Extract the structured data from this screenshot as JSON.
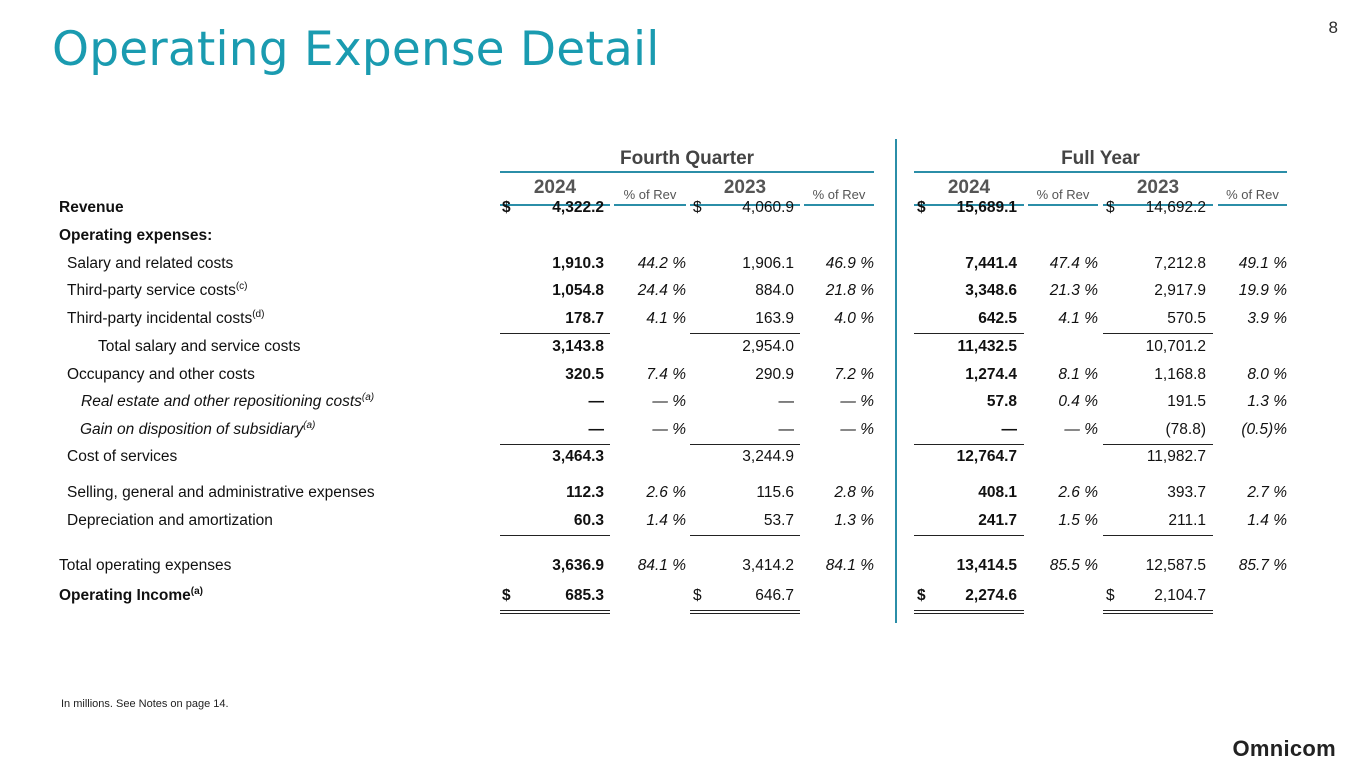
{
  "page": {
    "title": "Operating Expense Detail",
    "number": "8",
    "footnote": "In millions. See Notes on page 14.",
    "logo": "Omnicom"
  },
  "colors": {
    "accent": "#1a9bb0",
    "rule": "#2b8ea8"
  },
  "table": {
    "groups": [
      "Fourth Quarter",
      "Full Year"
    ],
    "years": [
      "2024",
      "2023",
      "2024",
      "2023"
    ],
    "pct_label": "% of Rev",
    "rows": [
      {
        "label": "Revenue",
        "style": "bold",
        "cur": [
          "$",
          "$",
          "$",
          "$"
        ],
        "v": [
          "4,322.2",
          "4,060.9",
          "15,689.1",
          "14,692.2"
        ],
        "p": [
          "",
          "",
          "",
          ""
        ]
      },
      {
        "label": "Operating expenses:",
        "style": "bold",
        "cur": [
          "",
          "",
          "",
          ""
        ],
        "v": [
          "",
          "",
          "",
          ""
        ],
        "p": [
          "",
          "",
          "",
          ""
        ]
      },
      {
        "label": "Salary and related costs",
        "style": "",
        "cur": [
          "",
          "",
          "",
          ""
        ],
        "v": [
          "1,910.3",
          "1,906.1",
          "7,441.4",
          "7,212.8"
        ],
        "p": [
          "44.2 %",
          "46.9 %",
          "47.4 %",
          "49.1 %"
        ]
      },
      {
        "label": "Third-party service costs",
        "sup": "(c)",
        "style": "",
        "cur": [
          "",
          "",
          "",
          ""
        ],
        "v": [
          "1,054.8",
          "884.0",
          "3,348.6",
          "2,917.9"
        ],
        "p": [
          "24.4 %",
          "21.8 %",
          "21.3 %",
          "19.9 %"
        ]
      },
      {
        "label": "Third-party incidental costs",
        "sup": "(d)",
        "style": "",
        "cur": [
          "",
          "",
          "",
          ""
        ],
        "v": [
          "178.7",
          "163.9",
          "642.5",
          "570.5"
        ],
        "p": [
          "4.1 %",
          "4.0 %",
          "4.1 %",
          "3.9 %"
        ]
      },
      {
        "label": "Total salary and service costs",
        "style": "",
        "cur": [
          "",
          "",
          "",
          ""
        ],
        "v": [
          "3,143.8",
          "2,954.0",
          "11,432.5",
          "10,701.2"
        ],
        "p": [
          "",
          "",
          "",
          ""
        ]
      },
      {
        "label": "Occupancy and other costs",
        "style": "",
        "cur": [
          "",
          "",
          "",
          ""
        ],
        "v": [
          "320.5",
          "290.9",
          "1,274.4",
          "1,168.8"
        ],
        "p": [
          "7.4 %",
          "7.2 %",
          "8.1 %",
          "8.0 %"
        ]
      },
      {
        "label": "Real estate and other repositioning costs",
        "sup": "(a)",
        "style": "italic",
        "cur": [
          "",
          "",
          "",
          ""
        ],
        "v": [
          "—",
          "—",
          "57.8",
          "191.5"
        ],
        "p": [
          "— %",
          "— %",
          "0.4 %",
          "1.3 %"
        ]
      },
      {
        "label": "Gain on disposition of subsidiary",
        "sup": "(a)",
        "style": "italic",
        "cur": [
          "",
          "",
          "",
          ""
        ],
        "v": [
          "—",
          "—",
          "—",
          "(78.8)"
        ],
        "p": [
          "— %",
          "— %",
          "— %",
          "(0.5)%"
        ]
      },
      {
        "label": "Cost of services",
        "style": "",
        "cur": [
          "",
          "",
          "",
          ""
        ],
        "v": [
          "3,464.3",
          "3,244.9",
          "12,764.7",
          "11,982.7"
        ],
        "p": [
          "",
          "",
          "",
          ""
        ]
      },
      {
        "label": "Selling, general and administrative expenses",
        "style": "",
        "cur": [
          "",
          "",
          "",
          ""
        ],
        "v": [
          "112.3",
          "115.6",
          "408.1",
          "393.7"
        ],
        "p": [
          "2.6 %",
          "2.8 %",
          "2.6 %",
          "2.7 %"
        ]
      },
      {
        "label": "Depreciation and amortization",
        "style": "",
        "cur": [
          "",
          "",
          "",
          ""
        ],
        "v": [
          "60.3",
          "53.7",
          "241.7",
          "211.1"
        ],
        "p": [
          "1.4 %",
          "1.3 %",
          "1.5 %",
          "1.4 %"
        ]
      },
      {
        "label": "Total operating expenses",
        "style": "",
        "cur": [
          "",
          "",
          "",
          ""
        ],
        "v": [
          "3,636.9",
          "3,414.2",
          "13,414.5",
          "12,587.5"
        ],
        "p": [
          "84.1 %",
          "84.1 %",
          "85.5 %",
          "85.7 %"
        ]
      },
      {
        "label": "Operating Income",
        "sup": "(a)",
        "style": "bold",
        "cur": [
          "$",
          "$",
          "$",
          "$"
        ],
        "v": [
          "685.3",
          "646.7",
          "2,274.6",
          "2,104.7"
        ],
        "p": [
          "",
          "",
          "",
          ""
        ]
      }
    ]
  }
}
